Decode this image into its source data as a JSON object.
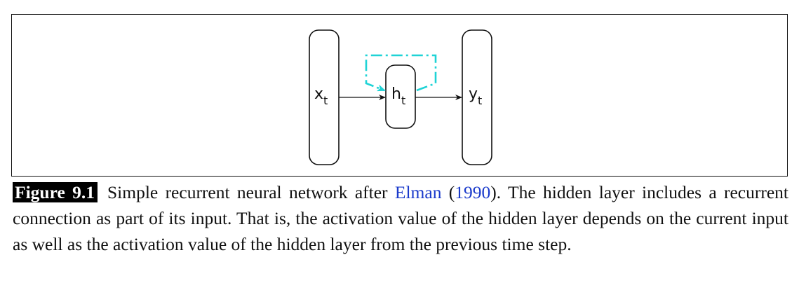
{
  "diagram": {
    "nodes": {
      "input": {
        "base": "x",
        "sub": "t"
      },
      "hidden": {
        "base": "h",
        "sub": "t"
      },
      "output": {
        "base": "y",
        "sub": "t"
      }
    },
    "recurrent_color": "#1fd3d6"
  },
  "caption": {
    "label": "Figure 9.1",
    "text_before": "Simple recurrent neural network after ",
    "cite_author": "Elman",
    "open_paren": " (",
    "cite_year": "1990",
    "text_after": "). The hidden layer includes a recurrent connection as part of its input. That is, the activation value of the hidden layer depends on the current input as well as the activation value of the hidden layer from the previous time step."
  }
}
